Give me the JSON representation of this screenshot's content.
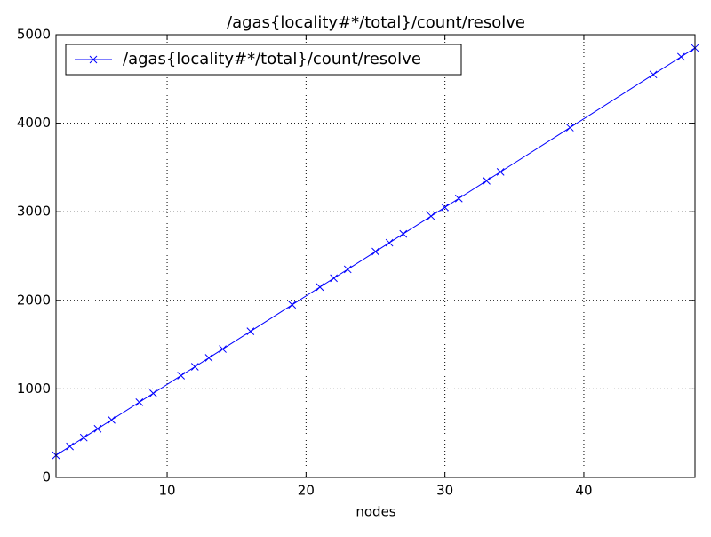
{
  "chart_data": {
    "type": "line",
    "title": "/agas{locality#*/total}/count/resolve",
    "xlabel": "nodes",
    "x": [
      2,
      3,
      4,
      5,
      6,
      8,
      9,
      11,
      12,
      13,
      14,
      16,
      19,
      21,
      22,
      23,
      25,
      26,
      27,
      29,
      30,
      31,
      33,
      34,
      39,
      45,
      47,
      48
    ],
    "series": [
      {
        "name": "/agas{locality#*/total}/count/resolve",
        "color": "#0000ff",
        "values": [
          250,
          350,
          450,
          550,
          650,
          850,
          950,
          1150,
          1250,
          1350,
          1450,
          1650,
          1950,
          2150,
          2250,
          2350,
          2550,
          2650,
          2750,
          2950,
          3050,
          3150,
          3350,
          3450,
          3950,
          4550,
          4750,
          4850
        ]
      }
    ],
    "xlim": [
      2,
      48
    ],
    "xticks": [
      10,
      20,
      30,
      40
    ],
    "ylim": [
      0,
      5000
    ],
    "yticks": [
      0,
      1000,
      2000,
      3000,
      4000,
      5000
    ],
    "grid": true,
    "legend": "upper left"
  }
}
